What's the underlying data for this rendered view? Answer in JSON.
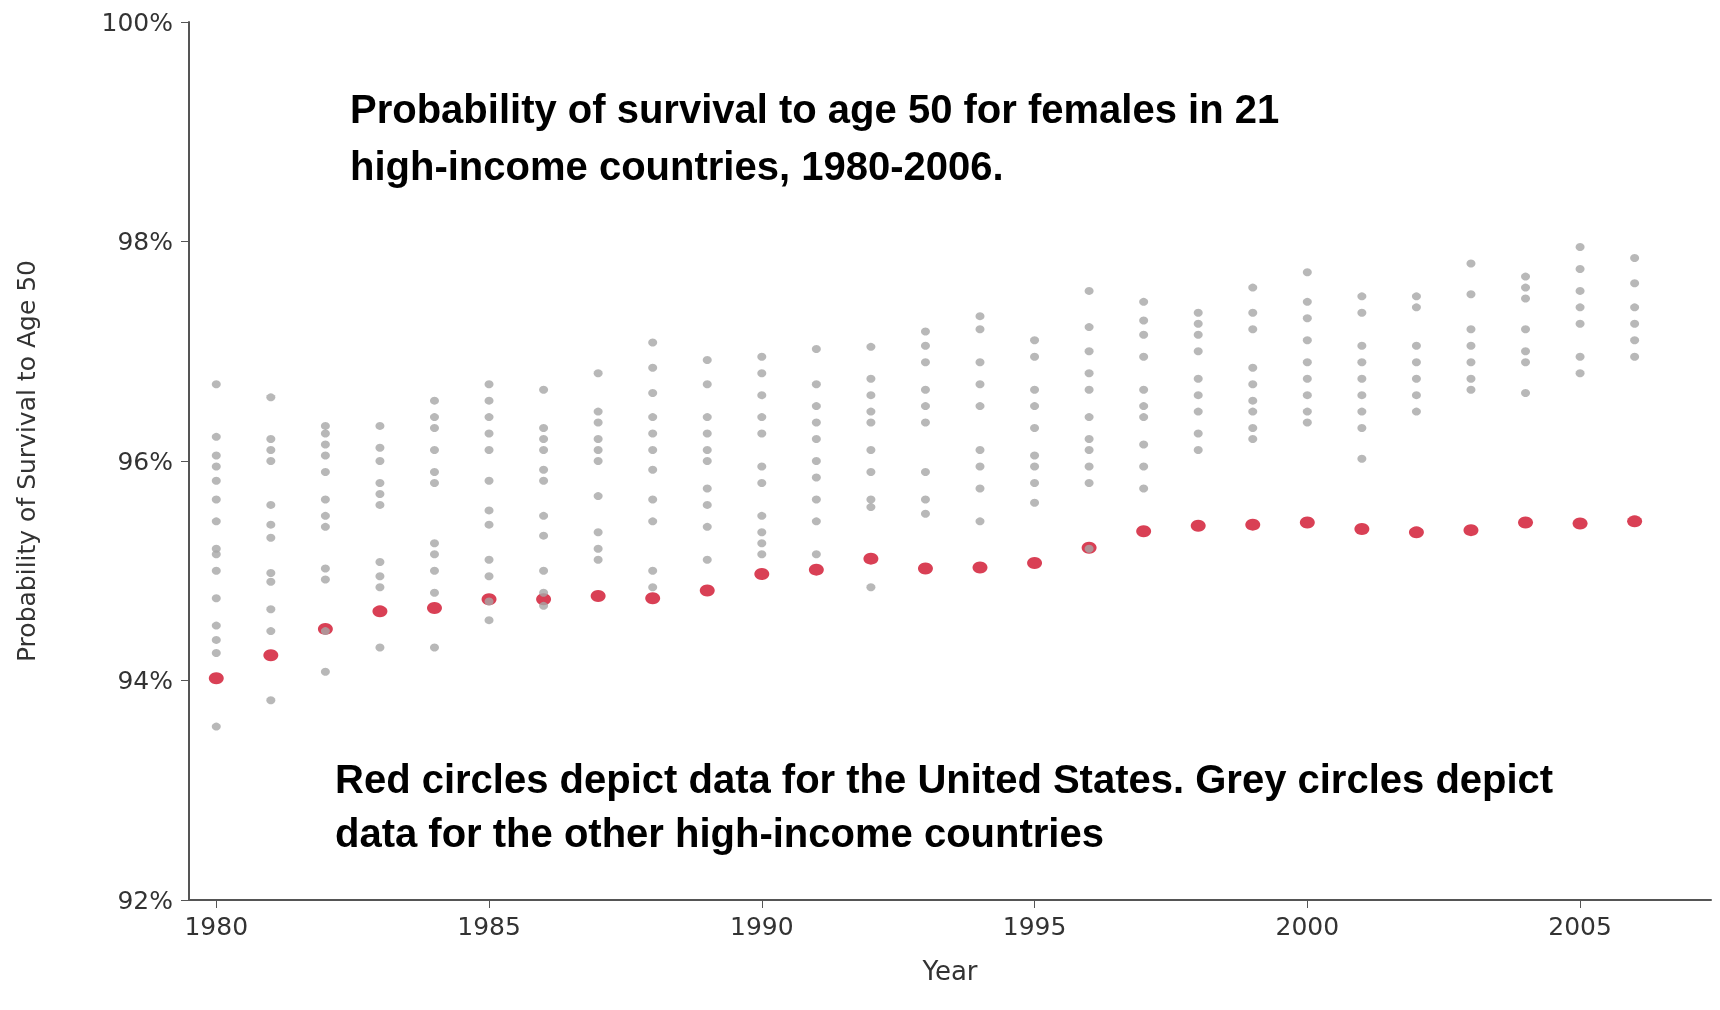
{
  "chart_data": {
    "type": "scatter",
    "title": "Probability of survival to age 50 for females in 21 high-income countries, 1980-2006.",
    "xlabel": "Year",
    "ylabel": "Probability of Survival to Age 50",
    "annotations": [
      "Red circles depict data for the United States. Grey circles depict data for the other high-income countries"
    ],
    "xlim": [
      1979.5,
      2007.4
    ],
    "xticks": [
      1980,
      1985,
      1990,
      1995,
      2000,
      2005
    ],
    "ylim": [
      92,
      100
    ],
    "yticks": [
      {
        "value": 92,
        "label": "92%"
      },
      {
        "value": 94,
        "label": "94%"
      },
      {
        "value": 96,
        "label": "96%"
      },
      {
        "value": 98,
        "label": "98%"
      },
      {
        "value": 100,
        "label": "100%"
      }
    ],
    "grid": false,
    "marker": "circle",
    "series": [
      {
        "color": "#a6a6a6",
        "x": [
          1980,
          1980,
          1980,
          1980,
          1980,
          1980,
          1980,
          1980,
          1980,
          1980,
          1980,
          1980,
          1980,
          1980,
          1980,
          1981,
          1981,
          1981,
          1981,
          1981,
          1981,
          1981,
          1981,
          1981,
          1981,
          1981,
          1981,
          1982,
          1982,
          1982,
          1982,
          1982,
          1982,
          1982,
          1982,
          1982,
          1982,
          1982,
          1982,
          1983,
          1983,
          1983,
          1983,
          1983,
          1983,
          1983,
          1983,
          1983,
          1983,
          1984,
          1984,
          1984,
          1984,
          1984,
          1984,
          1984,
          1984,
          1984,
          1984,
          1984,
          1985,
          1985,
          1985,
          1985,
          1985,
          1985,
          1985,
          1985,
          1985,
          1985,
          1985,
          1985,
          1986,
          1986,
          1986,
          1986,
          1986,
          1986,
          1986,
          1986,
          1986,
          1986,
          1986,
          1987,
          1987,
          1987,
          1987,
          1987,
          1987,
          1987,
          1987,
          1987,
          1987,
          1988,
          1988,
          1988,
          1988,
          1988,
          1988,
          1988,
          1988,
          1988,
          1988,
          1988,
          1989,
          1989,
          1989,
          1989,
          1989,
          1989,
          1989,
          1989,
          1989,
          1989,
          1990,
          1990,
          1990,
          1990,
          1990,
          1990,
          1990,
          1990,
          1990,
          1990,
          1990,
          1991,
          1991,
          1991,
          1991,
          1991,
          1991,
          1991,
          1991,
          1991,
          1991,
          1992,
          1992,
          1992,
          1992,
          1992,
          1992,
          1992,
          1992,
          1992,
          1992,
          1993,
          1993,
          1993,
          1993,
          1993,
          1993,
          1993,
          1993,
          1993,
          1994,
          1994,
          1994,
          1994,
          1994,
          1994,
          1994,
          1994,
          1994,
          1995,
          1995,
          1995,
          1995,
          1995,
          1995,
          1995,
          1995,
          1995,
          1996,
          1996,
          1996,
          1996,
          1996,
          1996,
          1996,
          1996,
          1996,
          1996,
          1996,
          1997,
          1997,
          1997,
          1997,
          1997,
          1997,
          1997,
          1997,
          1997,
          1997,
          1998,
          1998,
          1998,
          1998,
          1998,
          1998,
          1998,
          1998,
          1998,
          1999,
          1999,
          1999,
          1999,
          1999,
          1999,
          1999,
          1999,
          1999,
          2000,
          2000,
          2000,
          2000,
          2000,
          2000,
          2000,
          2000,
          2000,
          2001,
          2001,
          2001,
          2001,
          2001,
          2001,
          2001,
          2001,
          2001,
          2002,
          2002,
          2002,
          2002,
          2002,
          2002,
          2002,
          2003,
          2003,
          2003,
          2003,
          2003,
          2003,
          2003,
          2004,
          2004,
          2004,
          2004,
          2004,
          2004,
          2004,
          2005,
          2005,
          2005,
          2005,
          2005,
          2005,
          2005,
          2006,
          2006,
          2006,
          2006,
          2006,
          2006
        ],
        "values": [
          96.7,
          96.22,
          96.05,
          95.95,
          95.82,
          95.65,
          95.45,
          95.2,
          95.15,
          95.0,
          94.75,
          94.5,
          94.37,
          94.25,
          93.58,
          96.58,
          96.2,
          96.1,
          96.0,
          95.6,
          95.42,
          95.3,
          94.98,
          94.9,
          94.65,
          94.45,
          93.82,
          96.32,
          96.25,
          96.15,
          96.05,
          95.9,
          95.65,
          95.5,
          95.4,
          95.02,
          94.92,
          94.45,
          94.08,
          96.32,
          96.12,
          96.0,
          95.8,
          95.7,
          95.6,
          95.08,
          94.95,
          94.85,
          94.3,
          96.55,
          96.4,
          96.3,
          96.1,
          95.9,
          95.8,
          95.25,
          95.15,
          95.0,
          94.8,
          94.3,
          96.7,
          96.55,
          96.4,
          96.25,
          96.1,
          95.82,
          95.55,
          95.42,
          95.1,
          94.95,
          94.72,
          94.55,
          96.65,
          96.3,
          96.2,
          96.1,
          95.92,
          95.82,
          95.5,
          95.32,
          95.0,
          94.8,
          94.68,
          96.8,
          96.45,
          96.35,
          96.2,
          96.1,
          96.0,
          95.68,
          95.35,
          95.2,
          95.1,
          97.08,
          96.85,
          96.62,
          96.4,
          96.25,
          96.1,
          95.92,
          95.65,
          95.45,
          95.0,
          94.85,
          96.92,
          96.7,
          96.4,
          96.25,
          96.1,
          96.0,
          95.75,
          95.6,
          95.4,
          95.1,
          96.95,
          96.8,
          96.6,
          96.4,
          96.25,
          95.95,
          95.8,
          95.5,
          95.35,
          95.25,
          95.15,
          97.02,
          96.7,
          96.5,
          96.35,
          96.2,
          96.0,
          95.85,
          95.65,
          95.45,
          95.15,
          97.04,
          96.75,
          96.6,
          96.45,
          96.35,
          96.1,
          95.9,
          95.65,
          95.58,
          94.85,
          97.18,
          97.05,
          96.9,
          96.65,
          96.5,
          96.35,
          95.9,
          95.65,
          95.52,
          97.32,
          97.2,
          96.9,
          96.7,
          96.5,
          96.1,
          95.95,
          95.75,
          95.45,
          97.1,
          96.95,
          96.65,
          96.5,
          96.3,
          96.05,
          95.95,
          95.8,
          95.62,
          97.55,
          97.22,
          97.0,
          96.8,
          96.65,
          96.4,
          96.2,
          96.1,
          95.95,
          95.8,
          95.2,
          97.45,
          97.28,
          97.15,
          96.95,
          96.65,
          96.5,
          96.4,
          96.15,
          95.95,
          95.75,
          97.35,
          97.25,
          97.15,
          97.0,
          96.75,
          96.6,
          96.45,
          96.25,
          96.1,
          97.58,
          97.35,
          97.2,
          96.85,
          96.7,
          96.55,
          96.45,
          96.3,
          96.2,
          97.72,
          97.45,
          97.3,
          97.1,
          96.9,
          96.75,
          96.6,
          96.45,
          96.35,
          97.5,
          97.35,
          97.05,
          96.9,
          96.75,
          96.6,
          96.45,
          96.3,
          96.02,
          97.5,
          97.4,
          97.05,
          96.9,
          96.75,
          96.6,
          96.45,
          97.8,
          97.52,
          97.2,
          97.05,
          96.9,
          96.75,
          96.65,
          97.68,
          97.58,
          97.48,
          97.2,
          97.0,
          96.9,
          96.62,
          97.95,
          97.75,
          97.55,
          97.4,
          97.25,
          96.95,
          96.8,
          97.85,
          97.62,
          97.4,
          97.25,
          97.1,
          96.95
        ]
      },
      {
        "color": "#d0102b",
        "x": [
          1980,
          1981,
          1982,
          1983,
          1984,
          1985,
          1986,
          1987,
          1988,
          1989,
          1990,
          1991,
          1992,
          1993,
          1994,
          1995,
          1996,
          1997,
          1998,
          1999,
          2000,
          2001,
          2002,
          2003,
          2004,
          2005,
          2006
        ],
        "values": [
          94.02,
          94.23,
          94.47,
          94.63,
          94.66,
          94.74,
          94.74,
          94.77,
          94.75,
          94.82,
          94.97,
          95.01,
          95.11,
          95.02,
          95.03,
          95.07,
          95.21,
          95.36,
          95.41,
          95.42,
          95.44,
          95.38,
          95.35,
          95.37,
          95.44,
          95.43,
          95.45
        ]
      }
    ]
  }
}
